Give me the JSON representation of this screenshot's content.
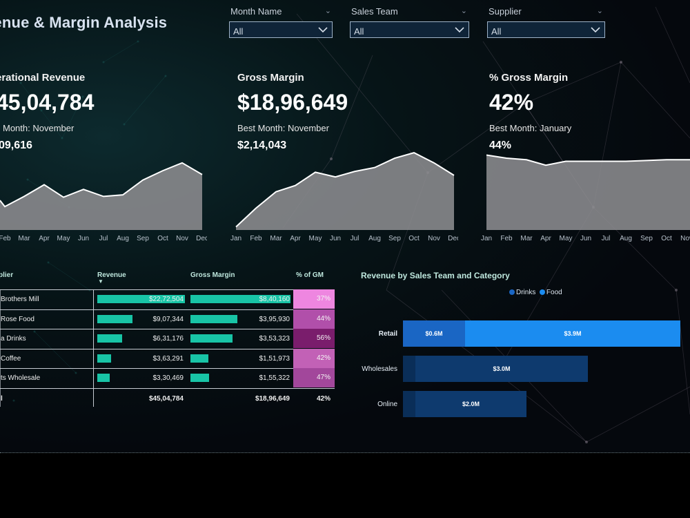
{
  "title": "venue & Margin Analysis",
  "slicers": [
    {
      "label": "Month Name",
      "value": "All"
    },
    {
      "label": "Sales Team",
      "value": "All"
    },
    {
      "label": "Supplier",
      "value": "All"
    }
  ],
  "kpis": [
    {
      "label": "erational Revenue",
      "value": "45,04,784",
      "best_label": "Month: November",
      "best_value": "09,616"
    },
    {
      "label": "Gross Margin",
      "value": "$18,96,649",
      "best_label": "Best Month: November",
      "best_value": "$2,14,043"
    },
    {
      "label": "% Gross Margin",
      "value": "42%",
      "best_label": "Best Month: January",
      "best_value": "44%"
    }
  ],
  "area_charts": [
    {
      "months": [
        "Feb",
        "Mar",
        "Apr",
        "May",
        "Jun",
        "Jul",
        "Aug",
        "Sep",
        "Oct",
        "Nov",
        "Dec"
      ],
      "show_first_month": false,
      "values": [
        0.3,
        0.43,
        0.58,
        0.42,
        0.52,
        0.43,
        0.45,
        0.64,
        0.76,
        0.86,
        0.71
      ],
      "lead_value": 0.38
    },
    {
      "months": [
        "Jan",
        "Feb",
        "Mar",
        "Apr",
        "May",
        "Jun",
        "Jul",
        "Aug",
        "Sep",
        "Oct",
        "Nov",
        "Dec"
      ],
      "show_first_month": true,
      "values": [
        0.04,
        0.28,
        0.49,
        0.57,
        0.74,
        0.68,
        0.75,
        0.8,
        0.92,
        0.99,
        0.86,
        0.7
      ],
      "lead_value": null
    },
    {
      "months": [
        "Jan",
        "Feb",
        "Mar",
        "Apr",
        "May",
        "Jun",
        "Jul",
        "Aug",
        "Sep",
        "Oct",
        "Nov"
      ],
      "show_first_month": true,
      "values": [
        0.96,
        0.92,
        0.9,
        0.83,
        0.88,
        0.88,
        0.88,
        0.88,
        0.89,
        0.9,
        0.9
      ],
      "lead_value": null
    }
  ],
  "table": {
    "headers": {
      "supplier": "plier",
      "revenue": "Revenue",
      "gross_margin": "Gross Margin",
      "pct_gm": "% of GM"
    },
    "rows": [
      {
        "supplier": "Brothers Mill",
        "revenue": "$22,72,504",
        "revenue_frac": 1.0,
        "gm": "$8,40,160",
        "gm_frac": 1.0,
        "pct": "37%",
        "pct_color": "#ee86e0"
      },
      {
        "supplier": "Rose Food",
        "revenue": "$9,07,344",
        "revenue_frac": 0.4,
        "gm": "$3,95,930",
        "gm_frac": 0.47,
        "pct": "44%",
        "pct_color": "#b14faa"
      },
      {
        "supplier": "a Drinks",
        "revenue": "$6,31,176",
        "revenue_frac": 0.28,
        "gm": "$3,53,323",
        "gm_frac": 0.42,
        "pct": "56%",
        "pct_color": "#7a1d6c"
      },
      {
        "supplier": "Coffee",
        "revenue": "$3,63,291",
        "revenue_frac": 0.16,
        "gm": "$1,51,973",
        "gm_frac": 0.18,
        "pct": "42%",
        "pct_color": "#c261b6"
      },
      {
        "supplier": "ts Wholesale",
        "revenue": "$3,30,469",
        "revenue_frac": 0.145,
        "gm": "$1,55,322",
        "gm_frac": 0.185,
        "pct": "47%",
        "pct_color": "#a2479b"
      }
    ],
    "total": {
      "label": "l",
      "revenue": "$45,04,784",
      "gm": "$18,96,649",
      "pct": "42%"
    }
  },
  "colors": {
    "bar_teal": "#18c4a6",
    "drinks": "#1a66c4",
    "food": "#1b8cf0",
    "bar_dark": "#0e3a6e"
  },
  "chart_data": {
    "type": "bar",
    "title": "Revenue by Sales Team and Category",
    "legend": [
      {
        "name": "Drinks",
        "color": "#1a66c4"
      },
      {
        "name": "Food",
        "color": "#1b8cf0"
      }
    ],
    "categories": [
      "Retail",
      "Wholesales",
      "Online"
    ],
    "series": [
      {
        "name": "Drinks",
        "values": [
          0.6,
          0.0,
          0.0
        ],
        "labels": [
          "$0.6M",
          "",
          ""
        ]
      },
      {
        "name": "Food",
        "values": [
          3.9,
          0.0,
          0.0
        ],
        "labels": [
          "$3.9M",
          "",
          ""
        ]
      }
    ],
    "totals": [
      4.5,
      3.0,
      2.0
    ],
    "total_labels": [
      "",
      "$3.0M",
      "$2.0M"
    ],
    "highlighted": "Retail"
  }
}
